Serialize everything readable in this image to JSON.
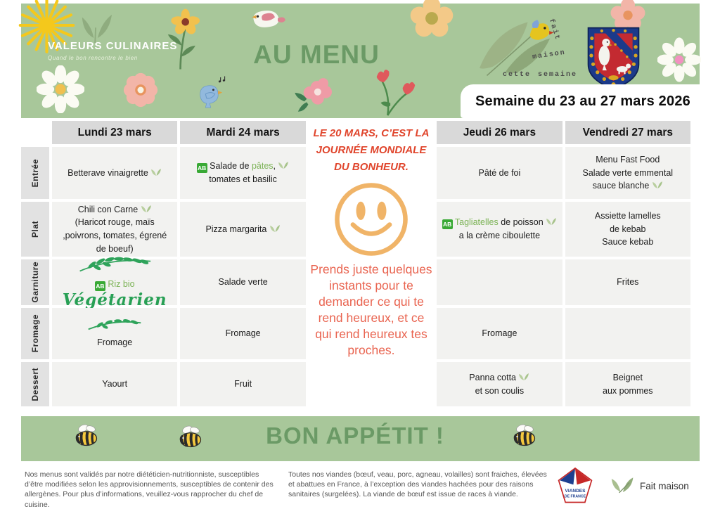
{
  "banner": {
    "brand": {
      "title": "VALEURS CULINAIRES",
      "tagline": "Quand le bon rencontre le bien"
    },
    "title": "AU MENU",
    "handmade": {
      "word1": "fait",
      "word2": "maison",
      "word3": "cette",
      "word4": "semaine"
    },
    "week_label": "Semaine du 23 au 27 mars 2026"
  },
  "icons": {
    "ab_label": "AB"
  },
  "table": {
    "day_headers": [
      "Lundi 23 mars",
      "Mardi 24 mars",
      "Jeudi 26 mars",
      "Vendredi 27 mars"
    ],
    "rows": [
      {
        "label": "Entrée",
        "cells": [
          [
            [
              {
                "t": "Betterave vinaigrette "
              },
              {
                "icon": "leaf"
              }
            ]
          ],
          [
            [
              {
                "icon": "ab"
              },
              {
                "t": " Salade de "
              },
              {
                "t": "pâtes",
                "style": "green"
              },
              {
                "t": ", "
              },
              {
                "icon": "leaf"
              }
            ],
            [
              {
                "t": "tomates et basilic"
              }
            ]
          ],
          [
            [
              {
                "t": "Pâté de foi"
              }
            ]
          ],
          [
            [
              {
                "t": "Menu Fast Food"
              }
            ],
            [
              {
                "t": "Salade verte emmental"
              }
            ],
            [
              {
                "t": "sauce blanche "
              },
              {
                "icon": "leaf"
              }
            ]
          ]
        ]
      },
      {
        "label": "Plat",
        "cells": [
          [
            [
              {
                "t": "Chili con Carne "
              },
              {
                "icon": "leaf"
              }
            ],
            [
              {
                "t": "(Haricot rouge, maïs"
              }
            ],
            [
              {
                "t": ",poivrons, tomates, égrené"
              }
            ],
            [
              {
                "t": "de boeuf)"
              }
            ]
          ],
          [
            [
              {
                "t": "Pizza margarita "
              },
              {
                "icon": "leaf"
              }
            ]
          ],
          [
            [
              {
                "icon": "ab"
              },
              {
                "t": " "
              },
              {
                "t": "Tagliatelles",
                "style": "green"
              },
              {
                "t": " de poisson "
              },
              {
                "icon": "leaf"
              }
            ],
            [
              {
                "t": "a la crème ciboulette"
              }
            ]
          ],
          [
            [
              {
                "t": "Assiette lamelles"
              }
            ],
            [
              {
                "t": "de kebab"
              }
            ],
            [
              {
                "t": "Sauce kebab"
              }
            ]
          ]
        ]
      },
      {
        "label": "Garniture",
        "cells": [
          [
            [
              {
                "icon": "branch"
              }
            ],
            [
              {
                "icon": "ab"
              },
              {
                "t": " "
              },
              {
                "t": "Riz bio",
                "style": "green"
              }
            ],
            [
              {
                "t": "Végétarien",
                "style": "script"
              }
            ]
          ],
          [
            [
              {
                "t": "Salade verte"
              }
            ]
          ],
          [],
          [
            [
              {
                "t": "Frites"
              }
            ]
          ]
        ]
      },
      {
        "label": "Fromage",
        "cells": [
          [
            [
              {
                "icon": "branch-small"
              }
            ],
            [
              {
                "t": "Fromage"
              }
            ]
          ],
          [
            [
              {
                "t": "Fromage"
              }
            ]
          ],
          [
            [
              {
                "t": "Fromage"
              }
            ]
          ],
          []
        ]
      },
      {
        "label": "Dessert",
        "cells": [
          [
            [
              {
                "t": "Yaourt"
              }
            ]
          ],
          [
            [
              {
                "t": "Fruit"
              }
            ]
          ],
          [
            [
              {
                "t": "Panna cotta "
              },
              {
                "icon": "leaf"
              }
            ],
            [
              {
                "t": "et son coulis"
              }
            ]
          ],
          [
            [
              {
                "t": "Beignet"
              }
            ],
            [
              {
                "t": "aux pommes"
              }
            ]
          ]
        ]
      }
    ]
  },
  "happiness": {
    "title": "LE 20 MARS, C’EST LA JOURNÉE MONDIALE DU BONHEUR.",
    "body": "Prends juste quelques instants pour te demander ce qui te rend heureux, et ce qui rend heureux tes proches."
  },
  "bon_appetit": "BON APPÉTIT !",
  "footer": {
    "left_note": "Nos menus sont validés par notre diététicien-nutritionniste, susceptibles d’être modifiées selon les approvisionnements, susceptibles de contenir des allergènes. Pour plus d’informations, veuillez-vous rapprocher du chef de cuisine.",
    "middle_note": "Toutes nos viandes (bœuf, veau, porc, agneau, volailles) sont fraiches, élevées et abattues en France, à l’exception des viandes hachées pour des raisons sanitaires (surgelées). La viande de bœuf est issue de races à viande.",
    "viandes_line1": "VIANDES",
    "viandes_line2": "DE FRANCE",
    "fait_maison_label": "Fait maison"
  },
  "colors": {
    "banner_green": "#a8c79a",
    "accent_green": "#6b9a66",
    "happy_red": "#e0452c",
    "happy_orange": "#e96450",
    "smiley_orange": "#f0b468",
    "bio_green": "#39a935",
    "item_green": "#7cb356",
    "header_gray": "#d9d9d9",
    "cell_gray": "#f2f2f0"
  }
}
